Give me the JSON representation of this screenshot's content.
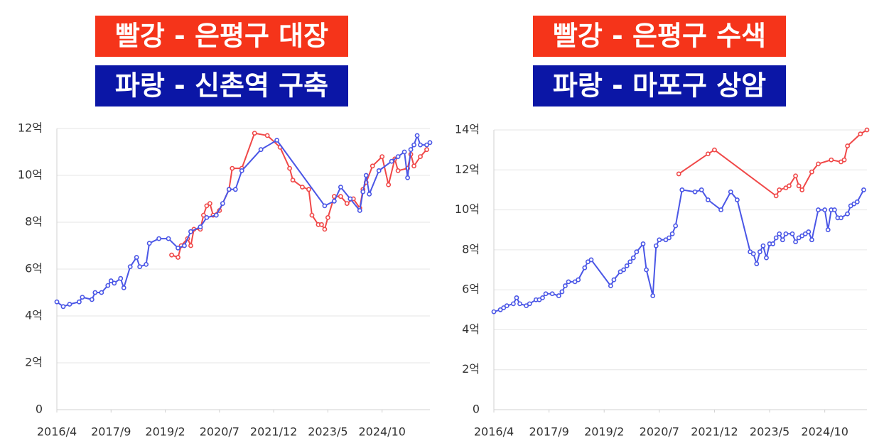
{
  "chart_data": [
    {
      "type": "line",
      "series": [
        {
          "name": "빨강 - 은평구 대장",
          "color": "#f04848",
          "box_color": "#f5341a",
          "x": [
            "2019/4",
            "2019/6",
            "2019/7",
            "2019/9",
            "2019/10",
            "2019/11",
            "2020/1",
            "2020/2",
            "2020/3",
            "2020/4",
            "2020/5",
            "2020/7",
            "2020/10",
            "2020/11",
            "2021/2",
            "2021/6",
            "2021/10",
            "2022/2",
            "2022/5",
            "2022/6",
            "2022/9",
            "2022/11",
            "2022/12",
            "2023/2",
            "2023/3",
            "2023/4",
            "2023/5",
            "2023/7",
            "2023/9",
            "2023/11",
            "2024/1",
            "2024/3",
            "2024/4",
            "2024/5",
            "2024/7",
            "2024/10",
            "2024/12",
            "2025/2",
            "2025/3",
            "2025/6",
            "2025/7",
            "2025/8",
            "2025/10",
            "2025/12"
          ],
          "values": [
            6.6,
            6.5,
            7.0,
            7.3,
            7.0,
            7.7,
            7.7,
            8.3,
            8.7,
            8.8,
            8.3,
            8.5,
            9.4,
            10.3,
            10.3,
            11.8,
            11.7,
            11.2,
            10.3,
            9.8,
            9.5,
            9.4,
            8.3,
            7.9,
            7.9,
            7.7,
            8.2,
            9.1,
            9.1,
            8.8,
            9.0,
            8.6,
            9.4,
            9.7,
            10.4,
            10.8,
            9.6,
            10.7,
            10.2,
            10.3,
            10.9,
            10.4,
            10.8,
            11.1
          ]
        },
        {
          "name": "파랑 - 신촌역 구축",
          "color": "#4a56e6",
          "box_color": "#0b16a6",
          "x": [
            "2016/4",
            "2016/6",
            "2016/8",
            "2016/11",
            "2016/12",
            "2017/3",
            "2017/4",
            "2017/6",
            "2017/8",
            "2017/9",
            "2017/10",
            "2017/12",
            "2018/1",
            "2018/3",
            "2018/5",
            "2018/6",
            "2018/8",
            "2018/9",
            "2018/12",
            "2019/3",
            "2019/6",
            "2019/8",
            "2019/10",
            "2020/1",
            "2020/3",
            "2020/6",
            "2020/8",
            "2020/10",
            "2020/12",
            "2021/2",
            "2021/8",
            "2022/1",
            "2023/4",
            "2023/7",
            "2023/9",
            "2023/12",
            "2024/3",
            "2024/4",
            "2024/5",
            "2024/6",
            "2024/9",
            "2025/1",
            "2025/3",
            "2025/5",
            "2025/6",
            "2025/7",
            "2025/8",
            "2025/9",
            "2025/10",
            "2025/12",
            "2026/1"
          ],
          "values": [
            4.6,
            4.4,
            4.5,
            4.6,
            4.8,
            4.7,
            5.0,
            5.0,
            5.3,
            5.5,
            5.4,
            5.6,
            5.2,
            6.1,
            6.5,
            6.1,
            6.2,
            7.1,
            7.3,
            7.3,
            6.9,
            7.0,
            7.6,
            7.8,
            8.2,
            8.3,
            8.8,
            9.4,
            9.4,
            10.2,
            11.1,
            11.5,
            8.7,
            8.9,
            9.5,
            9.0,
            8.5,
            9.3,
            10.0,
            9.2,
            10.2,
            10.6,
            10.8,
            11.0,
            9.9,
            11.1,
            11.3,
            11.7,
            11.3,
            11.3,
            11.4
          ]
        }
      ],
      "xlim": [
        "2016/4",
        "2026/1"
      ],
      "xticks": [
        "2016/4",
        "2017/9",
        "2019/2",
        "2020/7",
        "2021/12",
        "2023/5",
        "2024/10"
      ],
      "ylim": [
        0,
        12
      ],
      "yticks": [
        0,
        {
          "value": 2,
          "label": "2억"
        },
        {
          "value": 4,
          "label": "4억"
        },
        {
          "value": 6,
          "label": "6억"
        },
        {
          "value": 8,
          "label": "8억"
        },
        {
          "value": 10,
          "label": "10억"
        },
        {
          "value": 12,
          "label": "12억"
        }
      ],
      "grid": true
    },
    {
      "type": "line",
      "series": [
        {
          "name": "빨강 - 은평구 수색",
          "color": "#f04848",
          "box_color": "#f5341a",
          "x": [
            "2021/1",
            "2021/10",
            "2021/12",
            "2023/7",
            "2023/8",
            "2023/10",
            "2023/11",
            "2024/1",
            "2024/2",
            "2024/3",
            "2024/6",
            "2024/8",
            "2024/12",
            "2025/3",
            "2025/4",
            "2025/5",
            "2025/9",
            "2025/11"
          ],
          "values": [
            11.8,
            12.8,
            13.0,
            10.7,
            11.0,
            11.1,
            11.2,
            11.7,
            11.2,
            11.0,
            11.9,
            12.3,
            12.5,
            12.4,
            12.5,
            13.2,
            13.8,
            14.0
          ]
        },
        {
          "name": "파랑 - 마포구 상암",
          "color": "#4a56e6",
          "box_color": "#0b16a6",
          "x": [
            "2016/4",
            "2016/6",
            "2016/7",
            "2016/8",
            "2016/10",
            "2016/11",
            "2016/12",
            "2017/2",
            "2017/3",
            "2017/5",
            "2017/6",
            "2017/7",
            "2017/8",
            "2017/10",
            "2017/12",
            "2018/1",
            "2018/2",
            "2018/3",
            "2018/5",
            "2018/6",
            "2018/8",
            "2018/9",
            "2018/10",
            "2019/4",
            "2019/5",
            "2019/7",
            "2019/8",
            "2019/9",
            "2019/10",
            "2019/11",
            "2019/12",
            "2020/2",
            "2020/3",
            "2020/5",
            "2020/6",
            "2020/7",
            "2020/9",
            "2020/10",
            "2020/11",
            "2020/12",
            "2021/2",
            "2021/6",
            "2021/8",
            "2021/10",
            "2022/2",
            "2022/5",
            "2022/7",
            "2022/11",
            "2022/12",
            "2023/1",
            "2023/2",
            "2023/3",
            "2023/4",
            "2023/5",
            "2023/6",
            "2023/7",
            "2023/8",
            "2023/9",
            "2023/10",
            "2023/12",
            "2024/1",
            "2024/2",
            "2024/3",
            "2024/4",
            "2024/5",
            "2024/6",
            "2024/8",
            "2024/10",
            "2024/11",
            "2024/12",
            "2025/1",
            "2025/2",
            "2025/3",
            "2025/5",
            "2025/6",
            "2025/7",
            "2025/8",
            "2025/10"
          ],
          "values": [
            4.9,
            5.0,
            5.1,
            5.2,
            5.3,
            5.6,
            5.3,
            5.2,
            5.3,
            5.5,
            5.5,
            5.6,
            5.8,
            5.8,
            5.7,
            5.9,
            6.2,
            6.4,
            6.4,
            6.5,
            7.1,
            7.4,
            7.5,
            6.2,
            6.5,
            6.9,
            7.0,
            7.2,
            7.4,
            7.6,
            7.9,
            8.3,
            7.0,
            5.7,
            8.2,
            8.5,
            8.5,
            8.6,
            8.8,
            9.2,
            11.0,
            10.9,
            11.0,
            10.5,
            10.0,
            10.9,
            10.5,
            7.9,
            7.8,
            7.3,
            7.9,
            8.2,
            7.6,
            8.3,
            8.3,
            8.6,
            8.8,
            8.5,
            8.8,
            8.8,
            8.4,
            8.6,
            8.7,
            8.8,
            8.9,
            8.5,
            10.0,
            10.0,
            9.0,
            10.0,
            10.0,
            9.6,
            9.6,
            9.8,
            10.2,
            10.3,
            10.4,
            11.0
          ]
        }
      ],
      "xlim": [
        "2016/4",
        "2025/11"
      ],
      "xticks": [
        "2016/4",
        "2017/9",
        "2019/2",
        "2020/7",
        "2021/12",
        "2023/5",
        "2024/10"
      ],
      "ylim": [
        0,
        14
      ],
      "yticks": [
        0,
        {
          "value": 2,
          "label": "2억"
        },
        {
          "value": 4,
          "label": "4억"
        },
        {
          "value": 6,
          "label": "6억"
        },
        {
          "value": 8,
          "label": "8억"
        },
        {
          "value": 10,
          "label": "10억"
        },
        {
          "value": 12,
          "label": "12억"
        },
        {
          "value": 14,
          "label": "14억"
        }
      ],
      "grid": true
    }
  ]
}
